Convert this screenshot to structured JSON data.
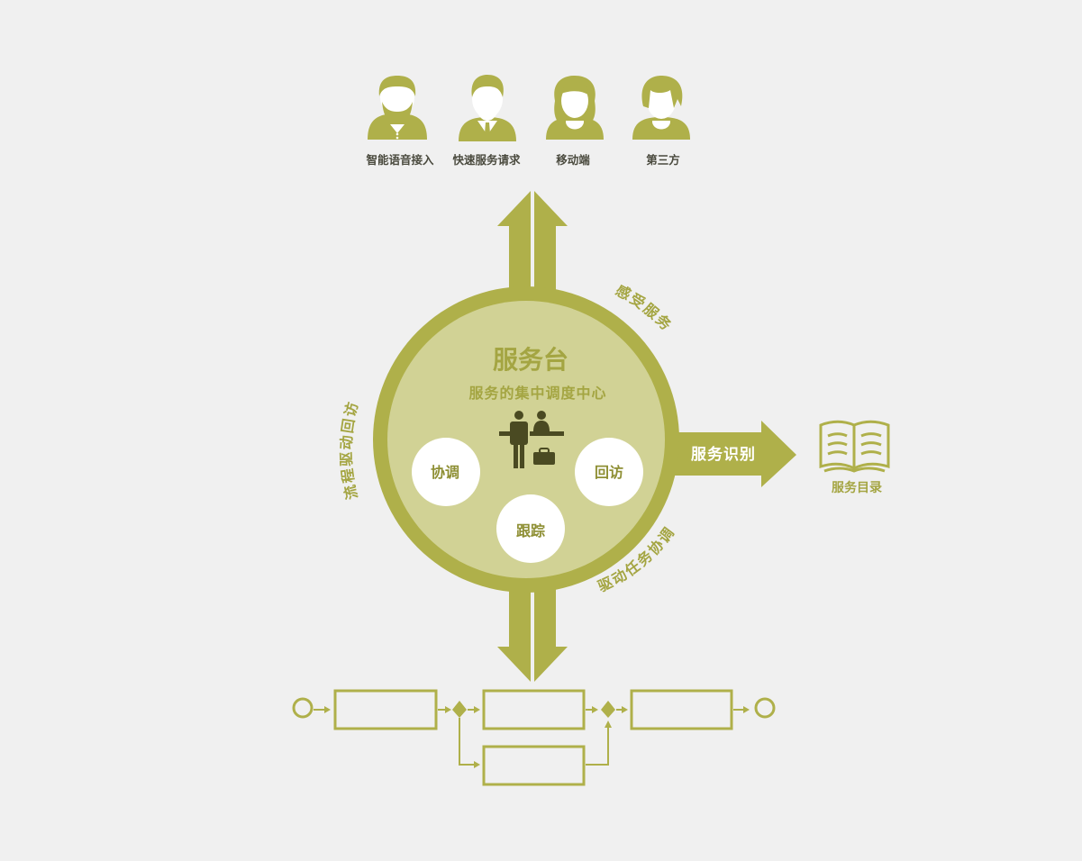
{
  "colors": {
    "background": "#f0f0f0",
    "olive": "#afb04a",
    "olive_light": "#d1d295",
    "olive_dark": "#a4a542",
    "icon_dark": "#4a4a22",
    "caption_text": "#4a4a3e"
  },
  "channels": [
    {
      "icon": "bearded-man-avatar-icon",
      "label": "智能语音接入"
    },
    {
      "icon": "man-avatar-icon",
      "label": "快速服务请求"
    },
    {
      "icon": "woman-avatar-icon",
      "label": "移动端"
    },
    {
      "icon": "short-hair-avatar-icon",
      "label": "第三方"
    }
  ],
  "hub": {
    "title": "服务台",
    "subtitle": "服务的集中调度中心",
    "icon": "service-desk-staff-icon",
    "functions": [
      "协调",
      "回访",
      "跟踪"
    ]
  },
  "arc_labels": {
    "top_right": "感受服务",
    "left": "流程驱动回访",
    "bottom_right": "驱动任务协调"
  },
  "right_arrow": {
    "label": "服务识别"
  },
  "catalog": {
    "icon": "open-book-icon",
    "label": "服务目录"
  },
  "process_flow": {
    "icon": "process-flow-diagram",
    "steps": [
      "",
      "",
      "",
      ""
    ]
  }
}
